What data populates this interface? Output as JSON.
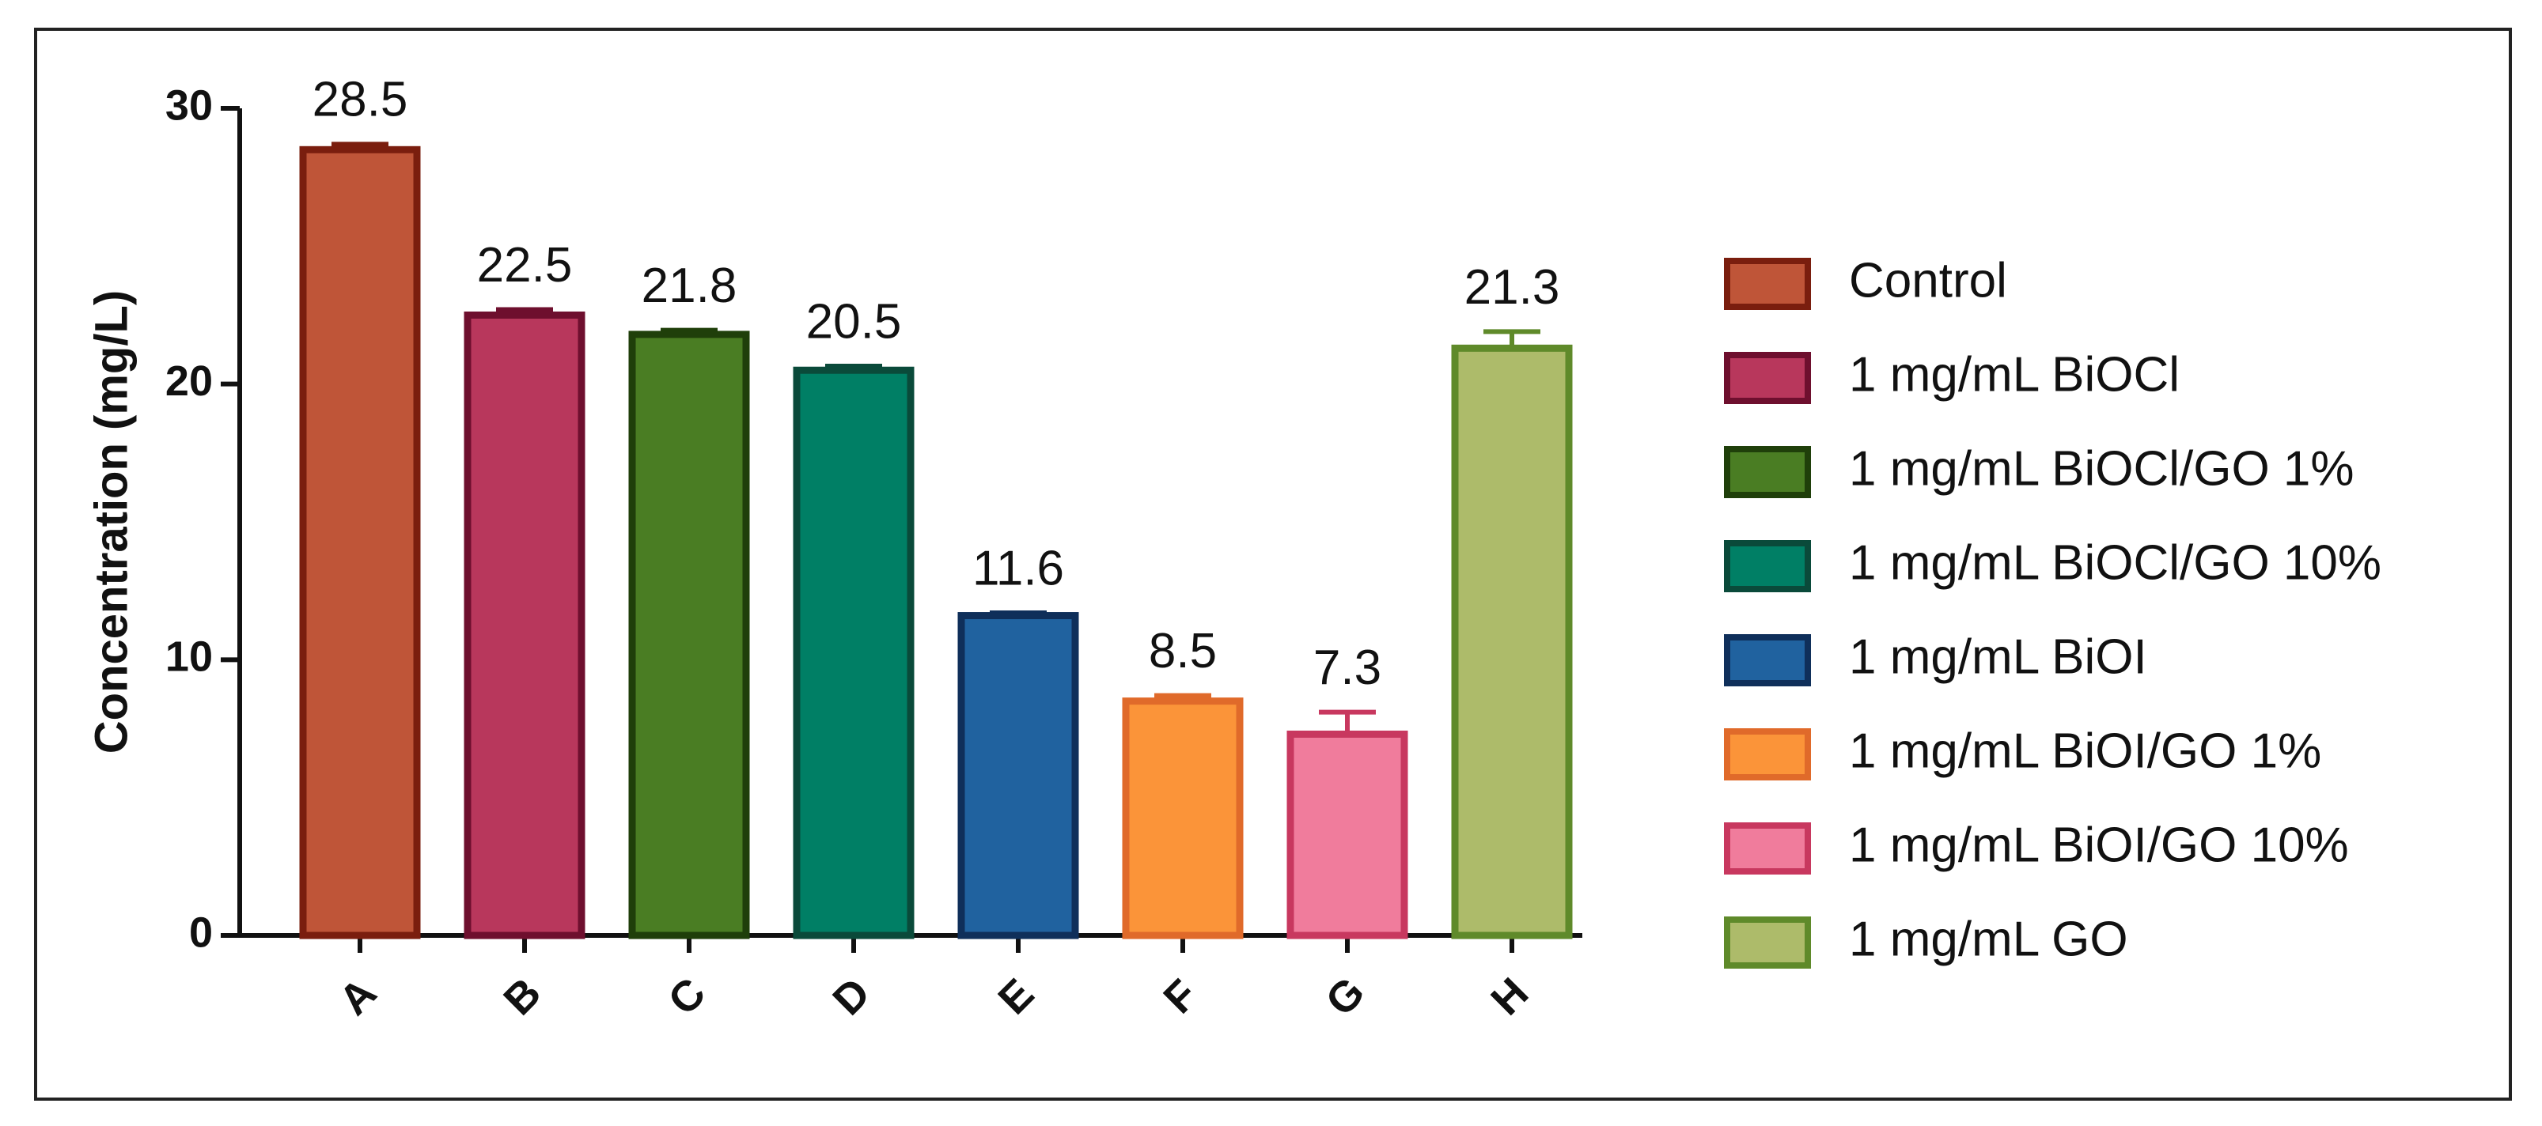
{
  "chart_data": {
    "type": "bar",
    "y_label": "Concentration (mg/L)",
    "categories": [
      "A",
      "B",
      "C",
      "D",
      "E",
      "F",
      "G",
      "H"
    ],
    "values": [
      28.5,
      22.5,
      21.8,
      20.5,
      11.6,
      8.5,
      7.3,
      21.3
    ],
    "errors": [
      0.2,
      0.2,
      0.15,
      0.15,
      0.1,
      0.2,
      0.8,
      0.6
    ],
    "labels": [
      "Control",
      "1 mg/mL BiOCl",
      "1 mg/mL BiOCl/GO 1%",
      "1 mg/mL BiOCl/GO 10%",
      "1 mg/mL BiOI",
      "1 mg/mL BiOI/GO 1%",
      "1 mg/mL BiOI/GO 10%",
      "1 mg/mL GO"
    ],
    "colors": [
      "#bf5538",
      "#b8375c",
      "#4a7d23",
      "#007f65",
      "#20629f",
      "#fb9439",
      "#f07c9c",
      "#adbb6a"
    ],
    "edgecolors": [
      "#7a1e0e",
      "#6e0f2e",
      "#1f3f0a",
      "#0a4a3a",
      "#0f2f5a",
      "#e06a2a",
      "#c8385f",
      "#5f8a2a"
    ],
    "ylim": [
      0,
      30
    ],
    "yticks": [
      0,
      10,
      20,
      30
    ]
  }
}
